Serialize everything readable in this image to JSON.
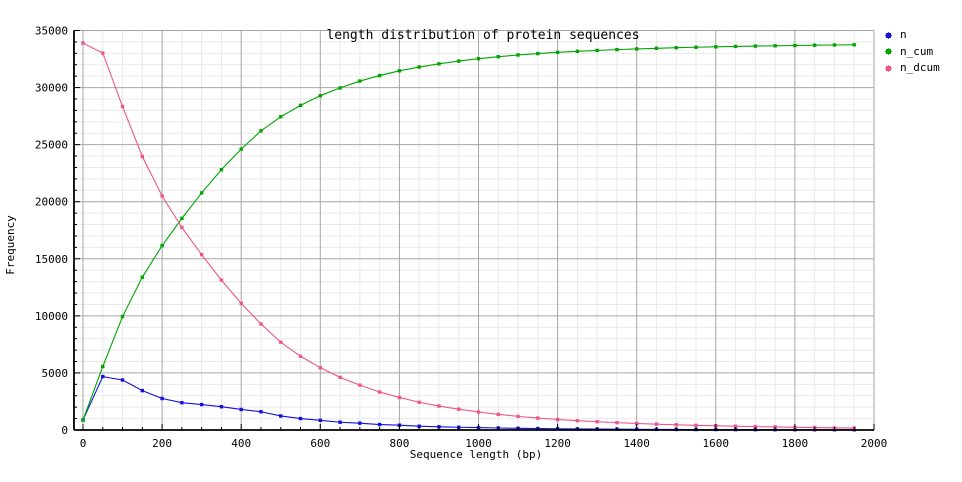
{
  "title": "length distribution of protein sequences",
  "axes": {
    "x_label": "Sequence length (bp)",
    "y_label": "Frequency",
    "x_ticks": [
      0,
      200,
      400,
      600,
      800,
      1000,
      1200,
      1400,
      1600,
      1800,
      2000
    ],
    "y_ticks": [
      0,
      5000,
      10000,
      15000,
      20000,
      25000,
      30000,
      35000
    ]
  },
  "legend": [
    {
      "label": "n",
      "color": "#1111dd"
    },
    {
      "label": "n_cum",
      "color": "#00a500"
    },
    {
      "label": "n_dcum",
      "color": "#ef548c"
    }
  ],
  "colors": {
    "background": "#ffffff",
    "axis": "#000000",
    "text": "#000000",
    "grid_major": "#a6a6a6",
    "grid_minor": "#e9e9e9"
  },
  "chart_data": {
    "type": "line",
    "title": "length distribution of protein sequences",
    "xlabel": "Sequence length (bp)",
    "ylabel": "Frequency",
    "xlim": [
      -25,
      2000
    ],
    "ylim": [
      0,
      35000
    ],
    "grid": true,
    "legend_position": "top-right outside plot",
    "marker": "square",
    "x": [
      0,
      50,
      100,
      150,
      200,
      250,
      300,
      350,
      400,
      450,
      500,
      550,
      600,
      650,
      700,
      750,
      800,
      850,
      900,
      950,
      1000,
      1050,
      1100,
      1150,
      1200,
      1250,
      1300,
      1350,
      1400,
      1450,
      1500,
      1550,
      1600,
      1650,
      1700,
      1750,
      1800,
      1850,
      1900,
      1950
    ],
    "series": [
      {
        "name": "n",
        "color": "#1111dd",
        "values": [
          880,
          4680,
          4380,
          3450,
          2760,
          2390,
          2230,
          2040,
          1800,
          1600,
          1230,
          1000,
          850,
          680,
          600,
          480,
          420,
          330,
          280,
          240,
          210,
          175,
          150,
          125,
          105,
          90,
          80,
          70,
          62,
          55,
          48,
          42,
          38,
          34,
          30,
          27,
          25,
          23,
          21,
          20
        ]
      },
      {
        "name": "n_cum",
        "color": "#00a500",
        "values": [
          880,
          5560,
          9940,
          13390,
          16150,
          18540,
          20770,
          22810,
          24610,
          26210,
          27440,
          28440,
          29290,
          29970,
          30570,
          31050,
          31470,
          31800,
          32080,
          32320,
          32530,
          32705,
          32855,
          32980,
          33085,
          33175,
          33255,
          33325,
          33387,
          33442,
          33490,
          33532,
          33570,
          33604,
          33634,
          33661,
          33686,
          33709,
          33730,
          33750
        ]
      },
      {
        "name": "n_dcum",
        "color": "#ef548c",
        "values": [
          33900,
          33020,
          28340,
          23960,
          20510,
          17750,
          15360,
          13130,
          11090,
          9290,
          7690,
          6460,
          5460,
          4610,
          3930,
          3330,
          2850,
          2430,
          2100,
          1820,
          1580,
          1370,
          1195,
          1045,
          920,
          815,
          725,
          645,
          575,
          513,
          458,
          410,
          368,
          330,
          296,
          266,
          239,
          214,
          191,
          170
        ]
      }
    ]
  }
}
